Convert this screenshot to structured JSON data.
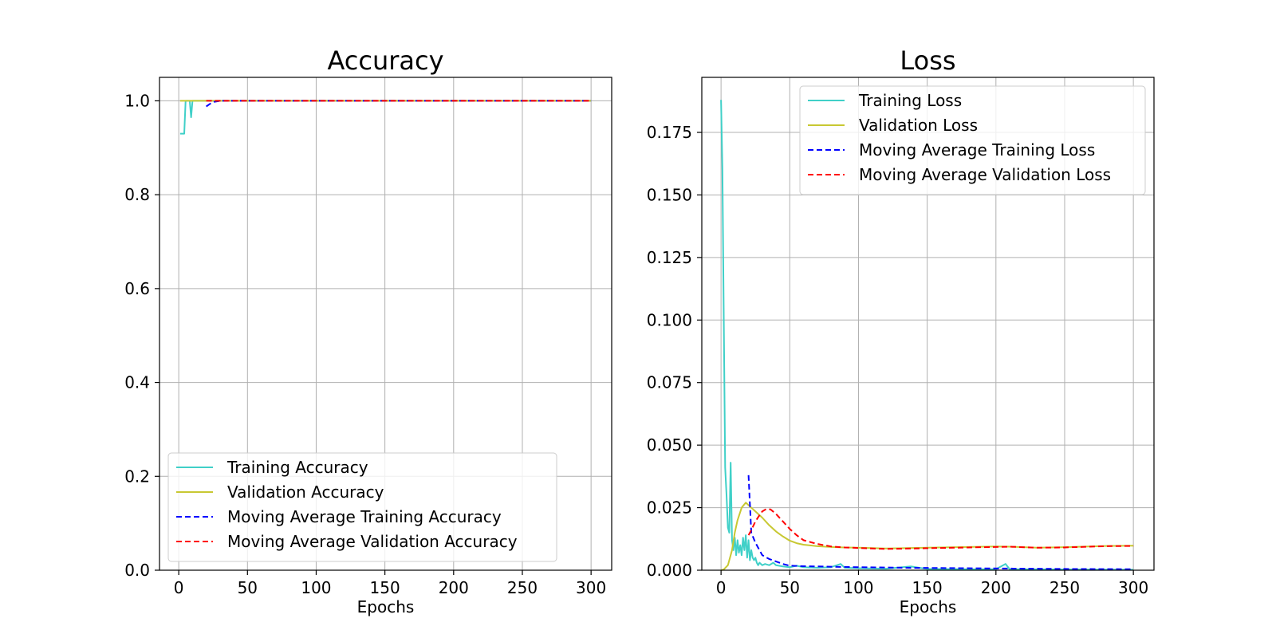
{
  "chart_data": [
    {
      "type": "line",
      "title": "Accuracy",
      "xlabel": "Epochs",
      "ylabel": "",
      "xlim": [
        -14,
        315
      ],
      "ylim": [
        0,
        1.05
      ],
      "xticks": [
        0,
        50,
        100,
        150,
        200,
        250,
        300
      ],
      "yticks": [
        0.0,
        0.2,
        0.4,
        0.6,
        0.8,
        1.0
      ],
      "ytick_labels": [
        "0.0",
        "0.2",
        "0.4",
        "0.6",
        "0.8",
        "1.0"
      ],
      "grid": true,
      "legend_position": "lower-left",
      "series": [
        {
          "name": "Training Accuracy",
          "color": "#40d0c8",
          "style": "solid",
          "x": [
            1,
            2,
            3,
            4,
            5,
            6,
            7,
            8,
            9,
            10,
            11,
            12,
            15,
            20,
            30,
            50,
            100,
            150,
            200,
            250,
            300
          ],
          "y": [
            0.93,
            0.93,
            0.93,
            0.93,
            1.0,
            1.0,
            1.0,
            1.0,
            0.965,
            1.0,
            1.0,
            1.0,
            1.0,
            1.0,
            1.0,
            1.0,
            1.0,
            1.0,
            1.0,
            1.0,
            1.0
          ]
        },
        {
          "name": "Validation Accuracy",
          "color": "#c8c832",
          "style": "solid",
          "x": [
            1,
            50,
            100,
            150,
            200,
            250,
            300
          ],
          "y": [
            1.0,
            1.0,
            1.0,
            1.0,
            1.0,
            1.0,
            1.0
          ]
        },
        {
          "name": "Moving Average Training Accuracy",
          "color": "#0000ff",
          "style": "dashed",
          "x": [
            20,
            23,
            26,
            30,
            50,
            100,
            150,
            200,
            250,
            300
          ],
          "y": [
            0.988,
            0.994,
            0.998,
            1.0,
            1.0,
            1.0,
            1.0,
            1.0,
            1.0,
            1.0
          ]
        },
        {
          "name": "Moving Average Validation Accuracy",
          "color": "#ff0000",
          "style": "dashed",
          "x": [
            20,
            50,
            100,
            150,
            200,
            250,
            300
          ],
          "y": [
            1.0,
            1.0,
            1.0,
            1.0,
            1.0,
            1.0,
            1.0
          ]
        }
      ]
    },
    {
      "type": "line",
      "title": "Loss",
      "xlabel": "Epochs",
      "ylabel": "",
      "xlim": [
        -14,
        315
      ],
      "ylim": [
        0,
        0.197
      ],
      "xticks": [
        0,
        50,
        100,
        150,
        200,
        250,
        300
      ],
      "yticks": [
        0.0,
        0.025,
        0.05,
        0.075,
        0.1,
        0.125,
        0.15,
        0.175
      ],
      "ytick_labels": [
        "0.000",
        "0.025",
        "0.050",
        "0.075",
        "0.100",
        "0.125",
        "0.150",
        "0.175"
      ],
      "grid": true,
      "legend_position": "upper-right",
      "series": [
        {
          "name": "Training Loss",
          "color": "#40d0c8",
          "style": "solid",
          "x": [
            0,
            1,
            2,
            3,
            4,
            5,
            6,
            7,
            8,
            9,
            10,
            11,
            12,
            13,
            14,
            15,
            16,
            17,
            18,
            19,
            20,
            21,
            22,
            23,
            24,
            25,
            26,
            27,
            28,
            30,
            32,
            35,
            38,
            40,
            45,
            50,
            55,
            60,
            70,
            80,
            87,
            90,
            100,
            120,
            138,
            150,
            180,
            200,
            207,
            210,
            250,
            300
          ],
          "y": [
            0.188,
            0.16,
            0.1,
            0.041,
            0.03,
            0.017,
            0.015,
            0.043,
            0.012,
            0.008,
            0.013,
            0.006,
            0.012,
            0.007,
            0.01,
            0.006,
            0.013,
            0.008,
            0.014,
            0.005,
            0.012,
            0.004,
            0.008,
            0.005,
            0.004,
            0.005,
            0.003,
            0.002,
            0.003,
            0.002,
            0.0025,
            0.002,
            0.003,
            0.002,
            0.0015,
            0.0012,
            0.0018,
            0.0012,
            0.001,
            0.0012,
            0.0025,
            0.001,
            0.0008,
            0.0006,
            0.0015,
            0.0005,
            0.0004,
            0.0004,
            0.0025,
            0.0004,
            0.0003,
            0.0002
          ]
        },
        {
          "name": "Validation Loss",
          "color": "#c8c832",
          "style": "solid",
          "x": [
            0,
            2,
            5,
            8,
            10,
            12,
            15,
            18,
            20,
            22,
            25,
            30,
            35,
            40,
            45,
            50,
            55,
            60,
            70,
            80,
            90,
            100,
            120,
            150,
            180,
            200,
            210,
            230,
            250,
            280,
            300
          ],
          "y": [
            0.0,
            0.0003,
            0.002,
            0.008,
            0.015,
            0.02,
            0.025,
            0.027,
            0.026,
            0.025,
            0.0235,
            0.021,
            0.018,
            0.0155,
            0.0135,
            0.0118,
            0.0108,
            0.0102,
            0.0096,
            0.0093,
            0.0091,
            0.009,
            0.0087,
            0.009,
            0.0093,
            0.0095,
            0.0094,
            0.009,
            0.0092,
            0.0097,
            0.0098
          ]
        },
        {
          "name": "Moving Average Training Loss",
          "color": "#0000ff",
          "style": "dashed",
          "x": [
            20,
            22,
            25,
            28,
            30,
            35,
            40,
            45,
            50,
            60,
            80,
            100,
            150,
            200,
            250,
            300
          ],
          "y": [
            0.038,
            0.015,
            0.011,
            0.008,
            0.006,
            0.0045,
            0.0035,
            0.0025,
            0.0018,
            0.0016,
            0.0014,
            0.0012,
            0.0009,
            0.0007,
            0.0005,
            0.0004
          ]
        },
        {
          "name": "Moving Average Validation Loss",
          "color": "#ff0000",
          "style": "dashed",
          "x": [
            20,
            22,
            25,
            28,
            30,
            33,
            36,
            40,
            45,
            50,
            55,
            60,
            70,
            80,
            90,
            100,
            120,
            150,
            180,
            200,
            210,
            230,
            250,
            280,
            300
          ],
          "y": [
            0.014,
            0.016,
            0.0195,
            0.022,
            0.0235,
            0.0245,
            0.0243,
            0.0225,
            0.0195,
            0.0165,
            0.014,
            0.012,
            0.0105,
            0.0095,
            0.0091,
            0.0089,
            0.0085,
            0.0088,
            0.0091,
            0.0093,
            0.0094,
            0.009,
            0.0091,
            0.0096,
            0.0097
          ]
        }
      ]
    }
  ]
}
